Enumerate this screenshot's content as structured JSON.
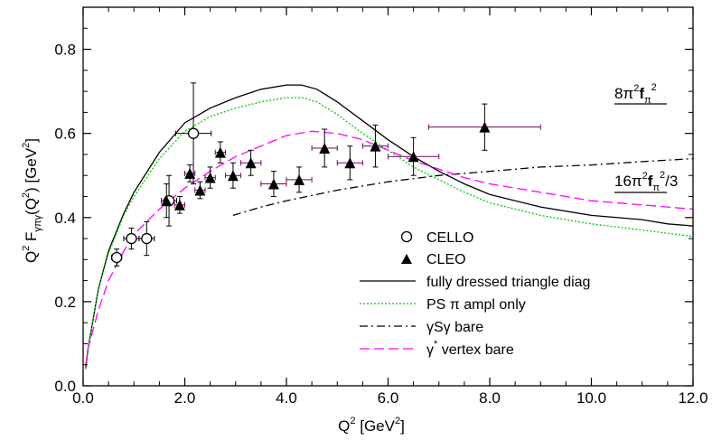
{
  "chart_data": {
    "type": "scatter",
    "xlabel": "Q² [GeV²]",
    "ylabel": "Q² F_γπγ(Q²) [GeV²]",
    "xlim": [
      0.0,
      12.0
    ],
    "ylim": [
      0.0,
      0.9
    ],
    "xticks": [
      "0.0",
      "2.0",
      "4.0",
      "6.0",
      "8.0",
      "10.0",
      "12.0"
    ],
    "yticks": [
      "0.0",
      "0.2",
      "0.4",
      "0.6",
      "0.8"
    ],
    "grid": false,
    "legend_position": "bottom-right",
    "annotations": [
      {
        "text": "8π²f_π²",
        "x": 10.8,
        "y": 0.66
      },
      {
        "text": "16π²f_π²/3",
        "x": 10.8,
        "y": 0.49
      }
    ],
    "series": [
      {
        "name": "CELLO",
        "kind": "scatter",
        "marker": "open-circle",
        "points": [
          {
            "x": 0.66,
            "y": 0.305,
            "xerr": 0.1,
            "yerr": 0.02
          },
          {
            "x": 0.95,
            "y": 0.35,
            "xerr": 0.15,
            "yerr": 0.025
          },
          {
            "x": 1.25,
            "y": 0.35,
            "xerr": 0.15,
            "yerr": 0.04
          },
          {
            "x": 1.69,
            "y": 0.44,
            "xerr": 0.15,
            "yerr": 0.06
          },
          {
            "x": 2.17,
            "y": 0.6,
            "xerr": 0.35,
            "yerr": 0.12
          }
        ]
      },
      {
        "name": "CLEO",
        "kind": "scatter",
        "marker": "filled-triangle",
        "points": [
          {
            "x": 1.64,
            "y": 0.44,
            "xerr": 0.1,
            "yerr": 0.04
          },
          {
            "x": 1.9,
            "y": 0.43,
            "xerr": 0.1,
            "yerr": 0.02
          },
          {
            "x": 2.1,
            "y": 0.505,
            "xerr": 0.1,
            "yerr": 0.02
          },
          {
            "x": 2.3,
            "y": 0.465,
            "xerr": 0.1,
            "yerr": 0.02
          },
          {
            "x": 2.5,
            "y": 0.495,
            "xerr": 0.1,
            "yerr": 0.025
          },
          {
            "x": 2.7,
            "y": 0.555,
            "xerr": 0.1,
            "yerr": 0.025
          },
          {
            "x": 2.95,
            "y": 0.5,
            "xerr": 0.15,
            "yerr": 0.03
          },
          {
            "x": 3.3,
            "y": 0.53,
            "xerr": 0.2,
            "yerr": 0.03
          },
          {
            "x": 3.75,
            "y": 0.48,
            "xerr": 0.25,
            "yerr": 0.03
          },
          {
            "x": 4.25,
            "y": 0.49,
            "xerr": 0.25,
            "yerr": 0.03
          },
          {
            "x": 4.75,
            "y": 0.565,
            "xerr": 0.25,
            "yerr": 0.045
          },
          {
            "x": 5.25,
            "y": 0.53,
            "xerr": 0.25,
            "yerr": 0.04
          },
          {
            "x": 5.75,
            "y": 0.57,
            "xerr": 0.25,
            "yerr": 0.05
          },
          {
            "x": 6.5,
            "y": 0.545,
            "xerr": 0.5,
            "yerr": 0.045
          },
          {
            "x": 7.9,
            "y": 0.615,
            "xerr": 1.1,
            "yerr": 0.055
          }
        ]
      },
      {
        "name": "fully dressed triangle diag",
        "kind": "line",
        "color": "#000000",
        "dash": "solid",
        "x": [
          0.05,
          0.1,
          0.3,
          0.5,
          0.8,
          1.0,
          1.5,
          2.0,
          2.5,
          3.0,
          3.5,
          4.0,
          4.3,
          4.6,
          5.0,
          5.5,
          6.0,
          6.5,
          7.0,
          7.5,
          8.0,
          9.0,
          10.0,
          11.0,
          11.5,
          12.0
        ],
        "y": [
          0.04,
          0.09,
          0.23,
          0.32,
          0.41,
          0.46,
          0.555,
          0.625,
          0.66,
          0.685,
          0.705,
          0.715,
          0.715,
          0.705,
          0.675,
          0.63,
          0.585,
          0.545,
          0.51,
          0.48,
          0.455,
          0.425,
          0.405,
          0.395,
          0.385,
          0.38
        ]
      },
      {
        "name": "PS π ampl only",
        "kind": "line",
        "color": "#00cc00",
        "dash": "dotted",
        "x": [
          0.05,
          0.1,
          0.3,
          0.5,
          0.8,
          1.0,
          1.5,
          2.0,
          2.5,
          3.0,
          3.5,
          4.0,
          4.3,
          4.6,
          5.0,
          5.5,
          6.0,
          6.5,
          7.0,
          7.5,
          8.0,
          9.0,
          10.0,
          11.0,
          12.0
        ],
        "y": [
          0.04,
          0.09,
          0.23,
          0.315,
          0.405,
          0.45,
          0.54,
          0.605,
          0.64,
          0.66,
          0.675,
          0.685,
          0.685,
          0.675,
          0.645,
          0.6,
          0.56,
          0.52,
          0.49,
          0.46,
          0.435,
          0.405,
          0.385,
          0.37,
          0.355
        ]
      },
      {
        "name": "γSγ bare",
        "kind": "line",
        "color": "#000000",
        "dash": "dash-dot",
        "x": [
          2.95,
          3.5,
          4.0,
          5.0,
          6.0,
          7.0,
          8.0,
          9.0,
          10.0,
          11.0,
          12.0
        ],
        "y": [
          0.405,
          0.425,
          0.44,
          0.465,
          0.485,
          0.5,
          0.51,
          0.52,
          0.525,
          0.533,
          0.54
        ]
      },
      {
        "name": "γ* vertex bare",
        "kind": "line",
        "color": "#ff00ff",
        "dash": "dashed",
        "x": [
          0.05,
          0.1,
          0.3,
          0.5,
          0.8,
          1.0,
          1.5,
          2.0,
          2.5,
          3.0,
          3.5,
          4.0,
          4.5,
          5.0,
          5.5,
          6.0,
          6.5,
          7.0,
          7.5,
          8.0,
          9.0,
          10.0,
          11.0,
          12.0
        ],
        "y": [
          0.05,
          0.09,
          0.18,
          0.25,
          0.32,
          0.36,
          0.42,
          0.47,
          0.51,
          0.545,
          0.57,
          0.595,
          0.605,
          0.6,
          0.585,
          0.56,
          0.535,
          0.515,
          0.495,
          0.48,
          0.46,
          0.44,
          0.43,
          0.42
        ]
      }
    ]
  }
}
